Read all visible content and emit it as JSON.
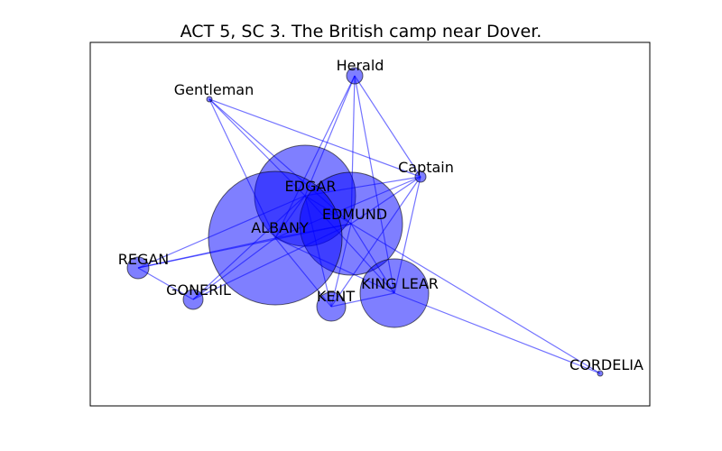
{
  "title": "ACT 5, SC 3. The British camp near Dover.",
  "colors": {
    "node_fill": "#0000ff",
    "edge": "#0000ff",
    "frame": "#000000"
  },
  "nodes": [
    {
      "id": "herald",
      "label": "Herald"
    },
    {
      "id": "gentleman",
      "label": "Gentleman"
    },
    {
      "id": "captain",
      "label": "Captain"
    },
    {
      "id": "edgar",
      "label": "EDGAR"
    },
    {
      "id": "edmund",
      "label": "EDMUND"
    },
    {
      "id": "albany",
      "label": "ALBANY"
    },
    {
      "id": "regan",
      "label": "REGAN"
    },
    {
      "id": "goneril",
      "label": "GONERIL"
    },
    {
      "id": "kent",
      "label": "KENT"
    },
    {
      "id": "king-lear",
      "label": "KING LEAR"
    },
    {
      "id": "cordelia",
      "label": "CORDELIA"
    }
  ],
  "edges": [
    [
      "herald",
      "edgar"
    ],
    [
      "herald",
      "edmund"
    ],
    [
      "herald",
      "albany"
    ],
    [
      "herald",
      "captain"
    ],
    [
      "herald",
      "king-lear"
    ],
    [
      "gentleman",
      "edgar"
    ],
    [
      "gentleman",
      "edmund"
    ],
    [
      "gentleman",
      "albany"
    ],
    [
      "gentleman",
      "captain"
    ],
    [
      "captain",
      "edgar"
    ],
    [
      "captain",
      "edmund"
    ],
    [
      "captain",
      "albany"
    ],
    [
      "captain",
      "king-lear"
    ],
    [
      "captain",
      "kent"
    ],
    [
      "edgar",
      "edmund"
    ],
    [
      "edgar",
      "albany"
    ],
    [
      "edgar",
      "regan"
    ],
    [
      "edgar",
      "goneril"
    ],
    [
      "edgar",
      "kent"
    ],
    [
      "edgar",
      "king-lear"
    ],
    [
      "edmund",
      "albany"
    ],
    [
      "edmund",
      "regan"
    ],
    [
      "edmund",
      "goneril"
    ],
    [
      "edmund",
      "kent"
    ],
    [
      "edmund",
      "king-lear"
    ],
    [
      "edmund",
      "cordelia"
    ],
    [
      "albany",
      "regan"
    ],
    [
      "albany",
      "goneril"
    ],
    [
      "albany",
      "kent"
    ],
    [
      "albany",
      "king-lear"
    ],
    [
      "regan",
      "goneril"
    ],
    [
      "kent",
      "king-lear"
    ],
    [
      "king-lear",
      "cordelia"
    ]
  ]
}
